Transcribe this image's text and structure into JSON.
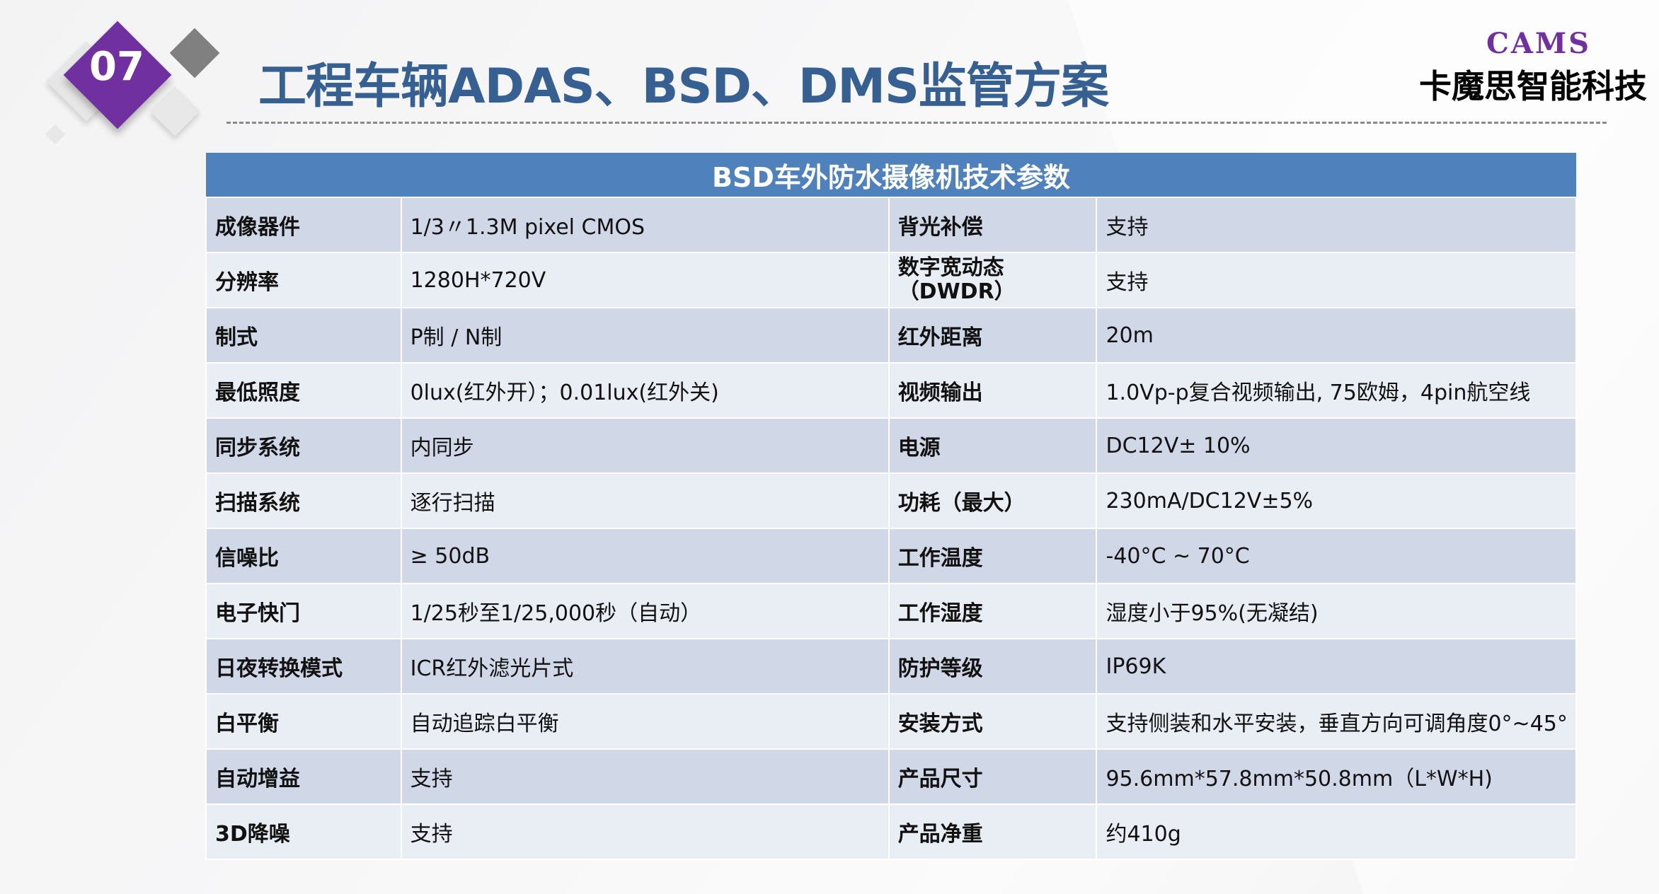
{
  "header": {
    "badge_number": "07",
    "title": "工程车辆ADAS、BSD、DMS监管方案",
    "logo_text": "CAMS",
    "company": "卡魔思智能科技",
    "accent_color": "#7030a0",
    "title_color": "#366092"
  },
  "table": {
    "title": "BSD车外防水摄像机技术参数",
    "rows": [
      [
        "成像器件",
        "1/3〃1.3M pixel CMOS",
        "背光补偿",
        "支持"
      ],
      [
        "分辨率",
        "1280H*720V",
        "数字宽动态（DWDR）",
        "支持"
      ],
      [
        "制式",
        "P制 / N制",
        "红外距离",
        "20m"
      ],
      [
        "最低照度",
        "0lux(红外开）；0.01lux(红外关)",
        "视频输出",
        "1.0Vp-p复合视频输出, 75欧姆，4pin航空线"
      ],
      [
        "同步系统",
        "内同步",
        "电源",
        "DC12V± 10%"
      ],
      [
        "扫描系统",
        "逐行扫描",
        "功耗（最大）",
        "230mA/DC12V±5%"
      ],
      [
        "信噪比",
        "≥ 50dB",
        "工作温度",
        "-40°C ~ 70°C"
      ],
      [
        "电子快门",
        "1/25秒至1/25,000秒（自动）",
        "工作湿度",
        "湿度小于95%(无凝结)"
      ],
      [
        "日夜转换模式",
        "ICR红外滤光片式",
        "防护等级",
        "IP69K"
      ],
      [
        "白平衡",
        "自动追踪白平衡",
        "安装方式",
        "支持侧装和水平安装，垂直方向可调角度0°~45°"
      ],
      [
        "自动增益",
        "支持",
        "产品尺寸",
        "95.6mm*57.8mm*50.8mm（L*W*H)"
      ],
      [
        "3D降噪",
        "支持",
        "产品净重",
        "约410g"
      ]
    ]
  }
}
